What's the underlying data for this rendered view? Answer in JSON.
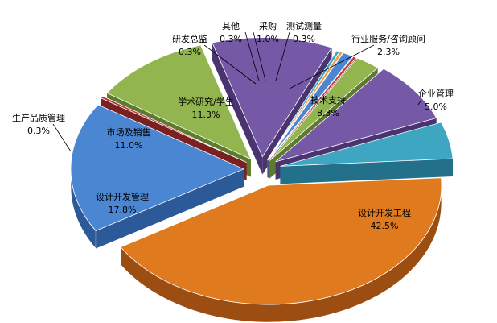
{
  "chart_data": {
    "type": "pie",
    "title": "",
    "exploded_3d": true,
    "legend": "none",
    "slices": [
      {
        "name": "设计开发工程",
        "value_text": "42.5%",
        "value": 42.5,
        "color": "#E07A1F",
        "side": "#9C4E12"
      },
      {
        "name": "设计开发管理",
        "value_text": "17.8%",
        "value": 17.8,
        "color": "#4A86D2",
        "side": "#2C5A98"
      },
      {
        "name": "生产品质管理",
        "value_text": "0.3%",
        "value": 0.3,
        "color": "#B33B3B",
        "side": "#7A2020"
      },
      {
        "name": "市场及销售",
        "value_text": "11.0%",
        "value": 11.0,
        "color": "#92B550",
        "side": "#5E7A2E"
      },
      {
        "name": "学术研究/学生",
        "value_text": "11.3%",
        "value": 11.3,
        "color": "#7558A6",
        "side": "#4A3470"
      },
      {
        "name": "研发总监",
        "value_text": "0.3%",
        "value": 0.3,
        "color": "#3FA6C2",
        "side": "#23708A"
      },
      {
        "name": "其他",
        "value_text": "0.3%",
        "value": 0.3,
        "color": "#F29B46",
        "side": "#A8621F"
      },
      {
        "name": "采购",
        "value_text": "1.0%",
        "value": 1.0,
        "color": "#4A86D2",
        "side": "#2C5A98"
      },
      {
        "name": "测试测量",
        "value_text": "0.3%",
        "value": 0.3,
        "color": "#C03B3B",
        "side": "#7A2020"
      },
      {
        "name": "行业服务/咨询顾问",
        "value_text": "2.3%",
        "value": 2.3,
        "color": "#92B550",
        "side": "#5E7A2E"
      },
      {
        "name": "技术支持",
        "value_text": "8.3%",
        "value": 8.3,
        "color": "#7558A6",
        "side": "#4A3470"
      },
      {
        "name": "企业管理",
        "value_text": "5.0%",
        "value": 5.0,
        "color": "#3FA6C2",
        "side": "#23708A"
      }
    ]
  }
}
